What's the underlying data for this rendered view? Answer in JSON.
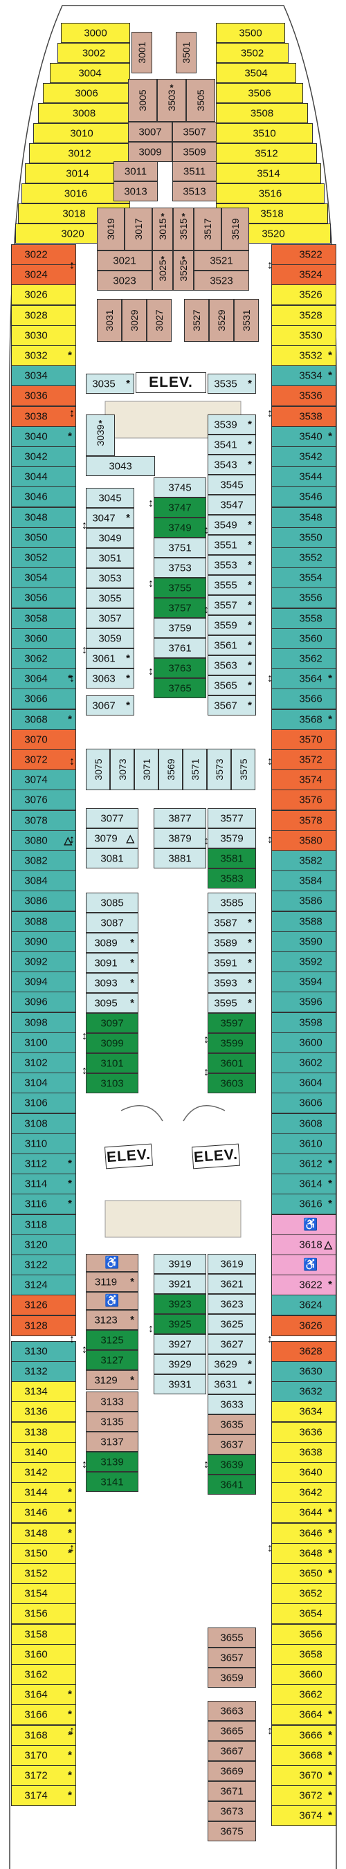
{
  "colors": {
    "y": "#fbf13b",
    "t": "#4bb5ad",
    "o": "#ef6a37",
    "l": "#cfe8ea",
    "g": "#199244",
    "b": "#d2ab9b",
    "p": "#f2a7d1"
  },
  "labels": {
    "elevator": "ELEV.",
    "accessible_icon": "wheelchair-icon",
    "accessible_glyph": "♿",
    "connecting_icon": "double-arrow-icon",
    "connecting_glyph": "↕",
    "asterisk": "*",
    "triangle": "△"
  },
  "bow_left": [
    {
      "n": "3000",
      "c": "y"
    },
    {
      "n": "3002",
      "c": "y"
    },
    {
      "n": "3004",
      "c": "y"
    },
    {
      "n": "3006",
      "c": "y"
    },
    {
      "n": "3008",
      "c": "y"
    },
    {
      "n": "3010",
      "c": "y"
    },
    {
      "n": "3012",
      "c": "y"
    },
    {
      "n": "3014",
      "c": "y"
    },
    {
      "n": "3016",
      "c": "y"
    },
    {
      "n": "3018",
      "c": "y"
    },
    {
      "n": "3020",
      "c": "y"
    }
  ],
  "bow_right": [
    {
      "n": "3500",
      "c": "y"
    },
    {
      "n": "3502",
      "c": "y"
    },
    {
      "n": "3504",
      "c": "y"
    },
    {
      "n": "3506",
      "c": "y"
    },
    {
      "n": "3508",
      "c": "y"
    },
    {
      "n": "3510",
      "c": "y"
    },
    {
      "n": "3512",
      "c": "y"
    },
    {
      "n": "3514",
      "c": "y"
    },
    {
      "n": "3516",
      "c": "y"
    },
    {
      "n": "3518",
      "c": "y"
    },
    {
      "n": "3520",
      "c": "y"
    }
  ],
  "left_column": [
    {
      "n": "3022",
      "c": "o"
    },
    {
      "n": "3024",
      "c": "o"
    },
    {
      "n": "3026",
      "c": "y"
    },
    {
      "n": "3028",
      "c": "y"
    },
    {
      "n": "3030",
      "c": "y"
    },
    {
      "n": "3032",
      "c": "y",
      "m": "*"
    },
    {
      "n": "3034",
      "c": "t"
    },
    {
      "n": "3036",
      "c": "o"
    },
    {
      "n": "3038",
      "c": "o"
    },
    {
      "n": "3040",
      "c": "t",
      "m": "*"
    },
    {
      "n": "3042",
      "c": "t"
    },
    {
      "n": "3044",
      "c": "t"
    },
    {
      "n": "3046",
      "c": "t"
    },
    {
      "n": "3048",
      "c": "t"
    },
    {
      "n": "3050",
      "c": "t"
    },
    {
      "n": "3052",
      "c": "t"
    },
    {
      "n": "3054",
      "c": "t"
    },
    {
      "n": "3056",
      "c": "t"
    },
    {
      "n": "3058",
      "c": "t"
    },
    {
      "n": "3060",
      "c": "t"
    },
    {
      "n": "3062",
      "c": "t"
    },
    {
      "n": "3064",
      "c": "t",
      "m": "*"
    },
    {
      "n": "3066",
      "c": "t"
    },
    {
      "n": "3068",
      "c": "t",
      "m": "*"
    },
    {
      "n": "3070",
      "c": "o"
    },
    {
      "n": "3072",
      "c": "o"
    },
    {
      "n": "3074",
      "c": "t"
    },
    {
      "n": "3076",
      "c": "t"
    },
    {
      "n": "3078",
      "c": "t"
    },
    {
      "n": "3080",
      "c": "t",
      "m": "△"
    },
    {
      "n": "3082",
      "c": "t"
    },
    {
      "n": "3084",
      "c": "t"
    },
    {
      "n": "3086",
      "c": "t"
    },
    {
      "n": "3088",
      "c": "t"
    },
    {
      "n": "3090",
      "c": "t"
    },
    {
      "n": "3092",
      "c": "t"
    },
    {
      "n": "3094",
      "c": "t"
    },
    {
      "n": "3096",
      "c": "t"
    },
    {
      "n": "3098",
      "c": "t"
    },
    {
      "n": "3100",
      "c": "t"
    },
    {
      "n": "3102",
      "c": "t"
    },
    {
      "n": "3104",
      "c": "t"
    },
    {
      "n": "3106",
      "c": "t"
    },
    {
      "n": "3108",
      "c": "t"
    },
    {
      "n": "3110",
      "c": "t"
    },
    {
      "n": "3112",
      "c": "t",
      "m": "*"
    },
    {
      "n": "3114",
      "c": "t",
      "m": "*"
    },
    {
      "n": "3116",
      "c": "t",
      "m": "*"
    },
    {
      "n": "3118",
      "c": "t"
    },
    {
      "n": "3120",
      "c": "t"
    },
    {
      "n": "3122",
      "c": "t"
    },
    {
      "n": "3124",
      "c": "t"
    },
    {
      "n": "3126",
      "c": "o"
    },
    {
      "n": "3128",
      "c": "o"
    },
    {
      "n": "3130",
      "c": "t"
    },
    {
      "n": "3132",
      "c": "t"
    },
    {
      "n": "3134",
      "c": "y"
    },
    {
      "n": "3136",
      "c": "y"
    },
    {
      "n": "3138",
      "c": "y"
    },
    {
      "n": "3140",
      "c": "y"
    },
    {
      "n": "3142",
      "c": "y"
    },
    {
      "n": "3144",
      "c": "y",
      "m": "*"
    },
    {
      "n": "3146",
      "c": "y",
      "m": "*"
    },
    {
      "n": "3148",
      "c": "y",
      "m": "*"
    },
    {
      "n": "3150",
      "c": "y",
      "m": "*"
    },
    {
      "n": "3152",
      "c": "y"
    },
    {
      "n": "3154",
      "c": "y"
    },
    {
      "n": "3156",
      "c": "y"
    },
    {
      "n": "3158",
      "c": "y"
    },
    {
      "n": "3160",
      "c": "y"
    },
    {
      "n": "3162",
      "c": "y"
    },
    {
      "n": "3164",
      "c": "y",
      "m": "*"
    },
    {
      "n": "3166",
      "c": "y",
      "m": "*"
    },
    {
      "n": "3168",
      "c": "y",
      "m": "*"
    },
    {
      "n": "3170",
      "c": "y",
      "m": "*"
    },
    {
      "n": "3172",
      "c": "y",
      "m": "*"
    },
    {
      "n": "3174",
      "c": "y",
      "m": "*"
    }
  ],
  "right_column": [
    {
      "n": "3522",
      "c": "o"
    },
    {
      "n": "3524",
      "c": "o"
    },
    {
      "n": "3526",
      "c": "y"
    },
    {
      "n": "3528",
      "c": "y"
    },
    {
      "n": "3530",
      "c": "y"
    },
    {
      "n": "3532",
      "c": "y",
      "m": "*"
    },
    {
      "n": "3534",
      "c": "t",
      "m": "*"
    },
    {
      "n": "3536",
      "c": "o"
    },
    {
      "n": "3538",
      "c": "o"
    },
    {
      "n": "3540",
      "c": "t",
      "m": "*"
    },
    {
      "n": "3542",
      "c": "t"
    },
    {
      "n": "3544",
      "c": "t"
    },
    {
      "n": "3546",
      "c": "t"
    },
    {
      "n": "3548",
      "c": "t"
    },
    {
      "n": "3550",
      "c": "t"
    },
    {
      "n": "3552",
      "c": "t"
    },
    {
      "n": "3554",
      "c": "t"
    },
    {
      "n": "3556",
      "c": "t"
    },
    {
      "n": "3558",
      "c": "t"
    },
    {
      "n": "3560",
      "c": "t"
    },
    {
      "n": "3562",
      "c": "t"
    },
    {
      "n": "3564",
      "c": "t",
      "m": "*"
    },
    {
      "n": "3566",
      "c": "t"
    },
    {
      "n": "3568",
      "c": "t",
      "m": "*"
    },
    {
      "n": "3570",
      "c": "o"
    },
    {
      "n": "3572",
      "c": "o"
    },
    {
      "n": "3574",
      "c": "o"
    },
    {
      "n": "3576",
      "c": "o"
    },
    {
      "n": "3578",
      "c": "o"
    },
    {
      "n": "3580",
      "c": "o"
    },
    {
      "n": "3582",
      "c": "t"
    },
    {
      "n": "3584",
      "c": "t"
    },
    {
      "n": "3586",
      "c": "t"
    },
    {
      "n": "3588",
      "c": "t"
    },
    {
      "n": "3590",
      "c": "t"
    },
    {
      "n": "3592",
      "c": "t"
    },
    {
      "n": "3594",
      "c": "t"
    },
    {
      "n": "3596",
      "c": "t"
    },
    {
      "n": "3598",
      "c": "t"
    },
    {
      "n": "3600",
      "c": "t"
    },
    {
      "n": "3602",
      "c": "t"
    },
    {
      "n": "3604",
      "c": "t"
    },
    {
      "n": "3606",
      "c": "t"
    },
    {
      "n": "3608",
      "c": "t"
    },
    {
      "n": "3610",
      "c": "t"
    },
    {
      "n": "3612",
      "c": "t",
      "m": "*"
    },
    {
      "n": "3614",
      "c": "t",
      "m": "*"
    },
    {
      "n": "3616",
      "c": "t",
      "m": "*"
    },
    {
      "n": "",
      "c": "p",
      "wc": true
    },
    {
      "n": "3618",
      "c": "p",
      "m": "△"
    },
    {
      "n": "",
      "c": "p",
      "wc": true
    },
    {
      "n": "3622",
      "c": "p",
      "m": "*"
    },
    {
      "n": "3624",
      "c": "t"
    },
    {
      "n": "3626",
      "c": "o"
    },
    {
      "n": "3628",
      "c": "o"
    },
    {
      "n": "3630",
      "c": "t"
    },
    {
      "n": "3632",
      "c": "t"
    },
    {
      "n": "3634",
      "c": "y"
    },
    {
      "n": "3636",
      "c": "y"
    },
    {
      "n": "3638",
      "c": "y"
    },
    {
      "n": "3640",
      "c": "y"
    },
    {
      "n": "3642",
      "c": "y"
    },
    {
      "n": "3644",
      "c": "y",
      "m": "*"
    },
    {
      "n": "3646",
      "c": "y",
      "m": "*"
    },
    {
      "n": "3648",
      "c": "y",
      "m": "*"
    },
    {
      "n": "3650",
      "c": "y",
      "m": "*"
    },
    {
      "n": "3652",
      "c": "y"
    },
    {
      "n": "3654",
      "c": "y"
    },
    {
      "n": "3656",
      "c": "y"
    },
    {
      "n": "3658",
      "c": "y"
    },
    {
      "n": "3660",
      "c": "y"
    },
    {
      "n": "3662",
      "c": "y"
    },
    {
      "n": "3664",
      "c": "y",
      "m": "*"
    },
    {
      "n": "3666",
      "c": "y",
      "m": "*"
    },
    {
      "n": "3668",
      "c": "y",
      "m": "*"
    },
    {
      "n": "3670",
      "c": "y",
      "m": "*"
    },
    {
      "n": "3672",
      "c": "y",
      "m": "*"
    },
    {
      "n": "3674",
      "c": "y",
      "m": "*"
    }
  ],
  "forward_center": [
    {
      "n": "3001",
      "c": "b",
      "v": true
    },
    {
      "n": "3501",
      "c": "b",
      "v": true
    },
    {
      "n": "3005",
      "c": "b",
      "v": true
    },
    {
      "n": "3503",
      "c": "b",
      "v": true,
      "m": "*"
    },
    {
      "n": "3505",
      "c": "b",
      "v": true
    },
    {
      "n": "3007",
      "c": "b"
    },
    {
      "n": "3507",
      "c": "b"
    },
    {
      "n": "3009",
      "c": "b"
    },
    {
      "n": "3509",
      "c": "b"
    },
    {
      "n": "3011",
      "c": "b"
    },
    {
      "n": "3511",
      "c": "b"
    },
    {
      "n": "3013",
      "c": "b"
    },
    {
      "n": "3513",
      "c": "b"
    },
    {
      "n": "3019",
      "c": "b",
      "v": true
    },
    {
      "n": "3017",
      "c": "b",
      "v": true
    },
    {
      "n": "3015",
      "c": "b",
      "v": true,
      "m": "*"
    },
    {
      "n": "3515",
      "c": "b",
      "v": true,
      "m": "*"
    },
    {
      "n": "3517",
      "c": "b",
      "v": true
    },
    {
      "n": "3519",
      "c": "b",
      "v": true
    },
    {
      "n": "3021",
      "c": "b"
    },
    {
      "n": "3023",
      "c": "b"
    },
    {
      "n": "3025",
      "c": "b",
      "v": true,
      "m": "*"
    },
    {
      "n": "3525",
      "c": "b",
      "v": true,
      "m": "*"
    },
    {
      "n": "3521",
      "c": "b"
    },
    {
      "n": "3523",
      "c": "b"
    },
    {
      "n": "3031",
      "c": "b",
      "v": true
    },
    {
      "n": "3029",
      "c": "b",
      "v": true
    },
    {
      "n": "3027",
      "c": "b",
      "v": true
    },
    {
      "n": "3527",
      "c": "b",
      "v": true
    },
    {
      "n": "3529",
      "c": "b",
      "v": true
    },
    {
      "n": "3531",
      "c": "b",
      "v": true
    }
  ],
  "mid_center": [
    {
      "n": "3035",
      "c": "l",
      "m": "*"
    },
    {
      "n": "3535",
      "c": "l",
      "m": "*"
    },
    {
      "n": "3039",
      "c": "l",
      "v": true,
      "m": "*"
    },
    {
      "n": "3043",
      "c": "l"
    },
    {
      "n": "3539",
      "c": "l",
      "m": "*"
    },
    {
      "n": "3541",
      "c": "l",
      "m": "*"
    },
    {
      "n": "3543",
      "c": "l",
      "m": "*"
    },
    {
      "n": "3545",
      "c": "l"
    },
    {
      "n": "3547",
      "c": "l"
    },
    {
      "n": "3549",
      "c": "l",
      "m": "*"
    },
    {
      "n": "3551",
      "c": "l",
      "m": "*"
    },
    {
      "n": "3553",
      "c": "l",
      "m": "*"
    },
    {
      "n": "3555",
      "c": "l",
      "m": "*"
    },
    {
      "n": "3557",
      "c": "l",
      "m": "*"
    },
    {
      "n": "3559",
      "c": "l",
      "m": "*"
    },
    {
      "n": "3561",
      "c": "l",
      "m": "*"
    },
    {
      "n": "3563",
      "c": "l",
      "m": "*"
    },
    {
      "n": "3565",
      "c": "l",
      "m": "*"
    },
    {
      "n": "3567",
      "c": "l",
      "m": "*"
    },
    {
      "n": "3045",
      "c": "l"
    },
    {
      "n": "3047",
      "c": "l",
      "m": "*"
    },
    {
      "n": "3049",
      "c": "l"
    },
    {
      "n": "3051",
      "c": "l"
    },
    {
      "n": "3053",
      "c": "l"
    },
    {
      "n": "3055",
      "c": "l"
    },
    {
      "n": "3057",
      "c": "l"
    },
    {
      "n": "3059",
      "c": "l"
    },
    {
      "n": "3061",
      "c": "l",
      "m": "*"
    },
    {
      "n": "3063",
      "c": "l",
      "m": "*"
    },
    {
      "n": "3067",
      "c": "l",
      "m": "*"
    },
    {
      "n": "3745",
      "c": "l"
    },
    {
      "n": "3747",
      "c": "g"
    },
    {
      "n": "3749",
      "c": "g"
    },
    {
      "n": "3751",
      "c": "l"
    },
    {
      "n": "3753",
      "c": "l"
    },
    {
      "n": "3755",
      "c": "g"
    },
    {
      "n": "3757",
      "c": "g"
    },
    {
      "n": "3759",
      "c": "l"
    },
    {
      "n": "3761",
      "c": "l"
    },
    {
      "n": "3763",
      "c": "g"
    },
    {
      "n": "3765",
      "c": "g"
    },
    {
      "n": "3075",
      "c": "l",
      "v": true
    },
    {
      "n": "3073",
      "c": "l",
      "v": true
    },
    {
      "n": "3071",
      "c": "l",
      "v": true
    },
    {
      "n": "3569",
      "c": "l",
      "v": true
    },
    {
      "n": "3571",
      "c": "l",
      "v": true
    },
    {
      "n": "3573",
      "c": "l",
      "v": true
    },
    {
      "n": "3575",
      "c": "l",
      "v": true
    },
    {
      "n": "3077",
      "c": "l"
    },
    {
      "n": "3079",
      "c": "l",
      "m": "△"
    },
    {
      "n": "3081",
      "c": "l"
    },
    {
      "n": "3877",
      "c": "l"
    },
    {
      "n": "3879",
      "c": "l"
    },
    {
      "n": "3881",
      "c": "l"
    },
    {
      "n": "3577",
      "c": "l"
    },
    {
      "n": "3579",
      "c": "l"
    },
    {
      "n": "3581",
      "c": "g"
    },
    {
      "n": "3583",
      "c": "g"
    },
    {
      "n": "3085",
      "c": "l"
    },
    {
      "n": "3087",
      "c": "l"
    },
    {
      "n": "3089",
      "c": "l",
      "m": "*"
    },
    {
      "n": "3091",
      "c": "l",
      "m": "*"
    },
    {
      "n": "3093",
      "c": "l",
      "m": "*"
    },
    {
      "n": "3095",
      "c": "l",
      "m": "*"
    },
    {
      "n": "3097",
      "c": "g"
    },
    {
      "n": "3099",
      "c": "g"
    },
    {
      "n": "3101",
      "c": "g"
    },
    {
      "n": "3103",
      "c": "g"
    },
    {
      "n": "3585",
      "c": "l"
    },
    {
      "n": "3587",
      "c": "l",
      "m": "*"
    },
    {
      "n": "3589",
      "c": "l",
      "m": "*"
    },
    {
      "n": "3591",
      "c": "l",
      "m": "*"
    },
    {
      "n": "3593",
      "c": "l",
      "m": "*"
    },
    {
      "n": "3595",
      "c": "l",
      "m": "*"
    },
    {
      "n": "3597",
      "c": "g"
    },
    {
      "n": "3599",
      "c": "g"
    },
    {
      "n": "3601",
      "c": "g"
    },
    {
      "n": "3603",
      "c": "g"
    }
  ],
  "aft_center": [
    {
      "n": "",
      "c": "b",
      "wc": true
    },
    {
      "n": "3119",
      "c": "b",
      "m": "*"
    },
    {
      "n": "",
      "c": "b",
      "wc": true
    },
    {
      "n": "3123",
      "c": "b",
      "m": "*"
    },
    {
      "n": "3125",
      "c": "g"
    },
    {
      "n": "3127",
      "c": "g"
    },
    {
      "n": "3129",
      "c": "b",
      "m": "*"
    },
    {
      "n": "3919",
      "c": "l"
    },
    {
      "n": "3921",
      "c": "l"
    },
    {
      "n": "3923",
      "c": "g"
    },
    {
      "n": "3925",
      "c": "g"
    },
    {
      "n": "3927",
      "c": "l"
    },
    {
      "n": "3929",
      "c": "l"
    },
    {
      "n": "3931",
      "c": "l"
    },
    {
      "n": "3619",
      "c": "l"
    },
    {
      "n": "3621",
      "c": "l"
    },
    {
      "n": "3623",
      "c": "l"
    },
    {
      "n": "3625",
      "c": "l"
    },
    {
      "n": "3627",
      "c": "l"
    },
    {
      "n": "3629",
      "c": "l",
      "m": "*"
    },
    {
      "n": "3631",
      "c": "l",
      "m": "*"
    },
    {
      "n": "3633",
      "c": "l"
    },
    {
      "n": "3133",
      "c": "b"
    },
    {
      "n": "3135",
      "c": "b"
    },
    {
      "n": "3137",
      "c": "b"
    },
    {
      "n": "3139",
      "c": "g"
    },
    {
      "n": "3141",
      "c": "g"
    },
    {
      "n": "3635",
      "c": "b"
    },
    {
      "n": "3637",
      "c": "b"
    },
    {
      "n": "3639",
      "c": "g"
    },
    {
      "n": "3641",
      "c": "g"
    },
    {
      "n": "3655",
      "c": "b"
    },
    {
      "n": "3657",
      "c": "b"
    },
    {
      "n": "3659",
      "c": "b"
    },
    {
      "n": "3663",
      "c": "b"
    },
    {
      "n": "3665",
      "c": "b"
    },
    {
      "n": "3667",
      "c": "b"
    },
    {
      "n": "3669",
      "c": "b"
    },
    {
      "n": "3671",
      "c": "b"
    },
    {
      "n": "3673",
      "c": "b"
    },
    {
      "n": "3675",
      "c": "b"
    }
  ]
}
